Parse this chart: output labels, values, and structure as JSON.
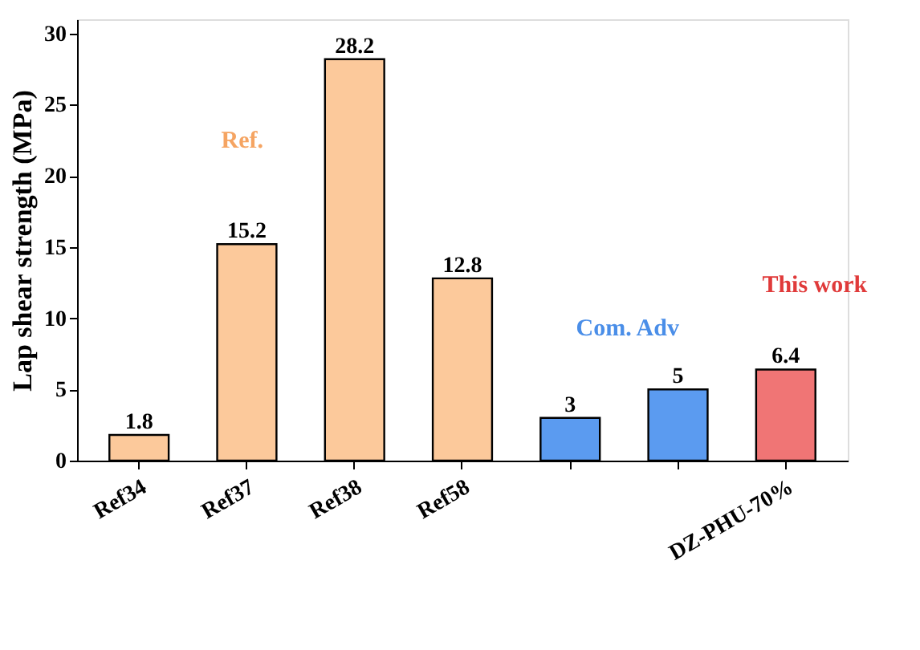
{
  "chart_data": {
    "type": "bar",
    "ylabel": "Lap shear strength (MPa)",
    "categories": [
      "Ref34",
      "Ref37",
      "Ref38",
      "Ref58",
      null,
      null,
      "DZ-PHU-70%"
    ],
    "values": [
      1.8,
      15.2,
      28.2,
      12.8,
      3,
      5,
      6.4
    ],
    "colors": [
      "#fcc99b",
      "#fcc99b",
      "#fcc99b",
      "#fcc99b",
      "#5b9bf0",
      "#5b9bf0",
      "#f07575"
    ],
    "ylim": [
      0,
      31
    ],
    "yticks": [
      0,
      5,
      10,
      15,
      20,
      25,
      30
    ],
    "grid": false,
    "data_labels": true,
    "annotations": [
      "Ref.",
      "Com. Adv",
      "This work"
    ]
  }
}
